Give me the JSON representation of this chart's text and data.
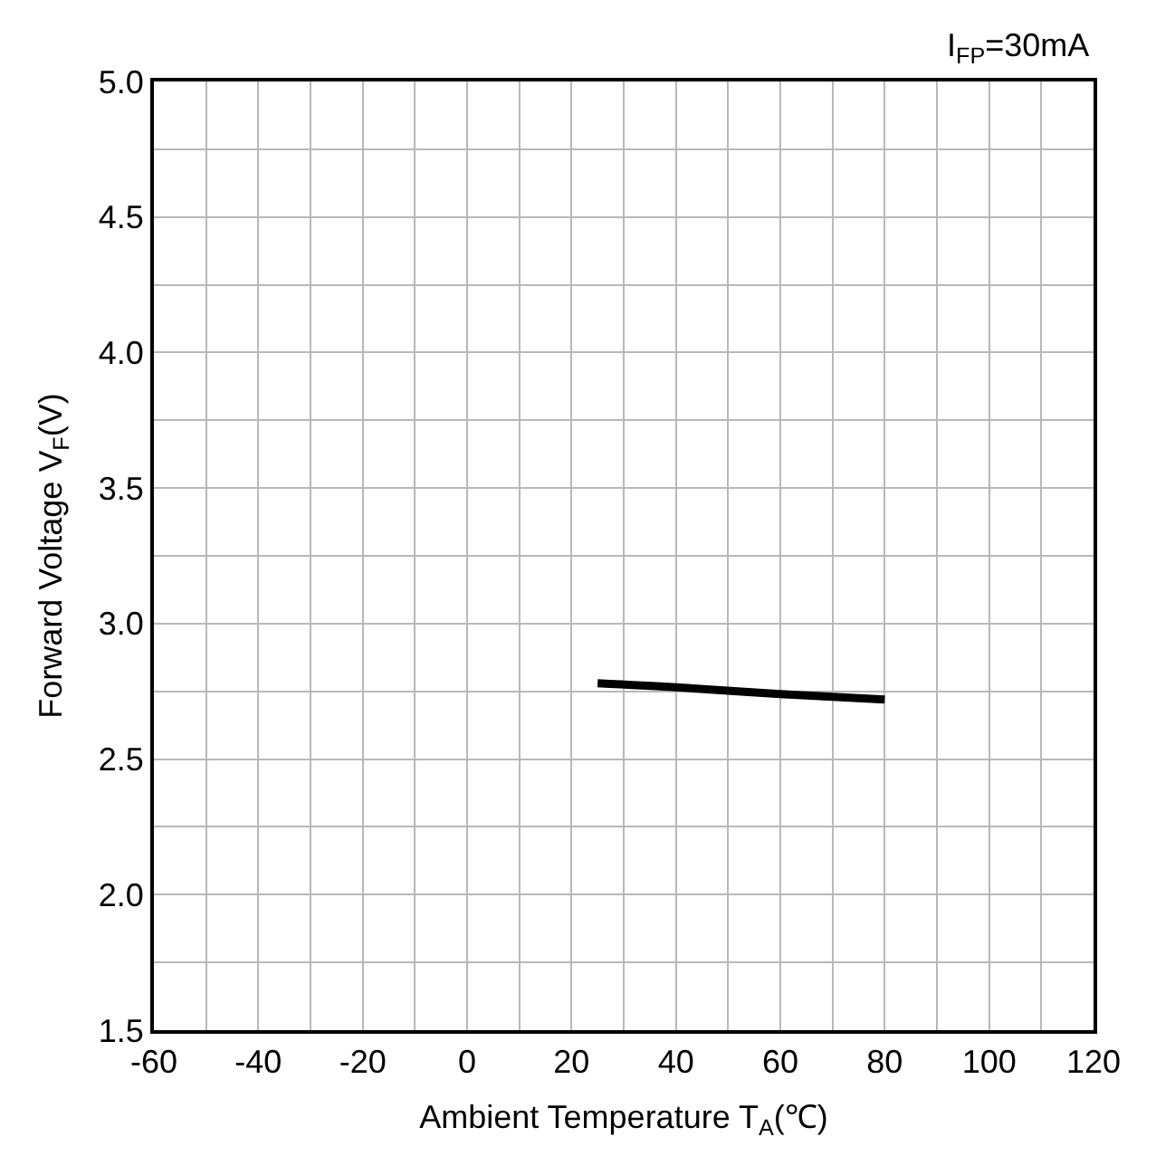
{
  "chart_data": {
    "type": "line",
    "xlabel": "Ambient Temperature T$_{A}$(℃)",
    "ylabel": "Forward Voltage V$_{F}$(V)",
    "annotations": [
      "I$_{FP}$=30mA"
    ],
    "x": [
      25,
      40,
      60,
      80
    ],
    "series": [
      {
        "color": "#000000",
        "values": [
          2.78,
          2.765,
          2.74,
          2.72
        ]
      }
    ],
    "xlim": [
      -60,
      120
    ],
    "xticks": [
      -60,
      {
        "value": -50,
        "label": null
      },
      -40,
      {
        "value": -30,
        "label": null
      },
      -20,
      {
        "value": -10,
        "label": null
      },
      0,
      {
        "value": 10,
        "label": null
      },
      20,
      {
        "value": 30,
        "label": null
      },
      40,
      {
        "value": 50,
        "label": null
      },
      60,
      {
        "value": 70,
        "label": null
      },
      80,
      {
        "value": 90,
        "label": null
      },
      100,
      {
        "value": 110,
        "label": null
      },
      120
    ],
    "ylim": [
      1.5,
      5.0
    ],
    "yticks": [
      {
        "value": 1.5,
        "label": "1.5"
      },
      {
        "value": 1.75,
        "label": null
      },
      {
        "value": 2.0,
        "label": "2.0"
      },
      {
        "value": 2.25,
        "label": null
      },
      {
        "value": 2.5,
        "label": "2.5"
      },
      {
        "value": 2.75,
        "label": null
      },
      {
        "value": 3.0,
        "label": "3.0"
      },
      {
        "value": 3.25,
        "label": null
      },
      {
        "value": 3.5,
        "label": "3.5"
      },
      {
        "value": 3.75,
        "label": null
      },
      {
        "value": 4.0,
        "label": "4.0"
      },
      {
        "value": 4.25,
        "label": null
      },
      {
        "value": 4.5,
        "label": "4.5"
      },
      {
        "value": 4.75,
        "label": null
      },
      {
        "value": 5.0,
        "label": "5.0"
      }
    ],
    "grid": true,
    "marker": "none",
    "line_style": "solid"
  }
}
